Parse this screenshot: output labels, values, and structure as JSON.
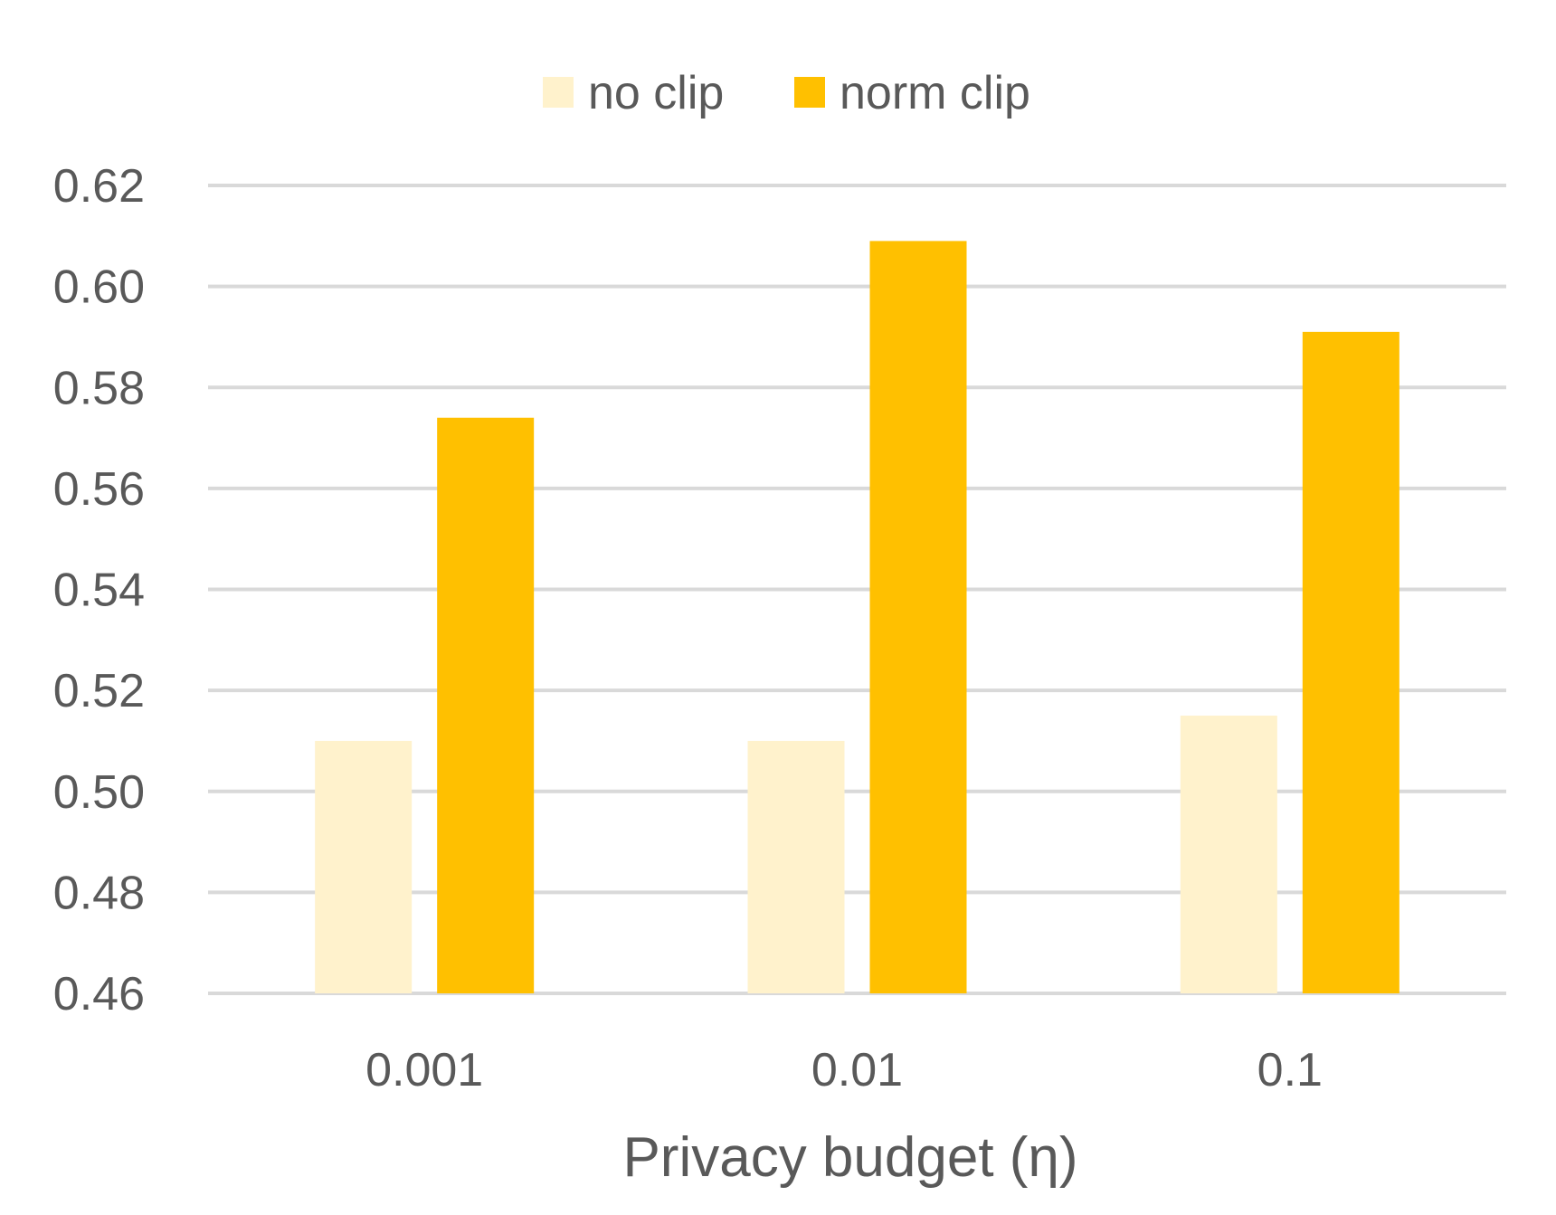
{
  "chart_data": {
    "type": "bar",
    "title": "",
    "xlabel": "Privacy budget (η)",
    "ylabel": "",
    "categories": [
      "0.001",
      "0.01",
      "0.1"
    ],
    "series": [
      {
        "name": "no clip",
        "color": "#FFF2CC",
        "values": [
          0.51,
          0.51,
          0.515
        ]
      },
      {
        "name": "norm clip",
        "color": "#FFC000",
        "values": [
          0.574,
          0.609,
          0.591
        ]
      }
    ],
    "ylim": [
      0.46,
      0.62
    ],
    "yticks": [
      "0.62",
      "0.60",
      "0.58",
      "0.56",
      "0.54",
      "0.52",
      "0.50",
      "0.48",
      "0.46"
    ],
    "grid": true,
    "gridline_color": "#D9D9D9",
    "legend_position": "top-center"
  }
}
